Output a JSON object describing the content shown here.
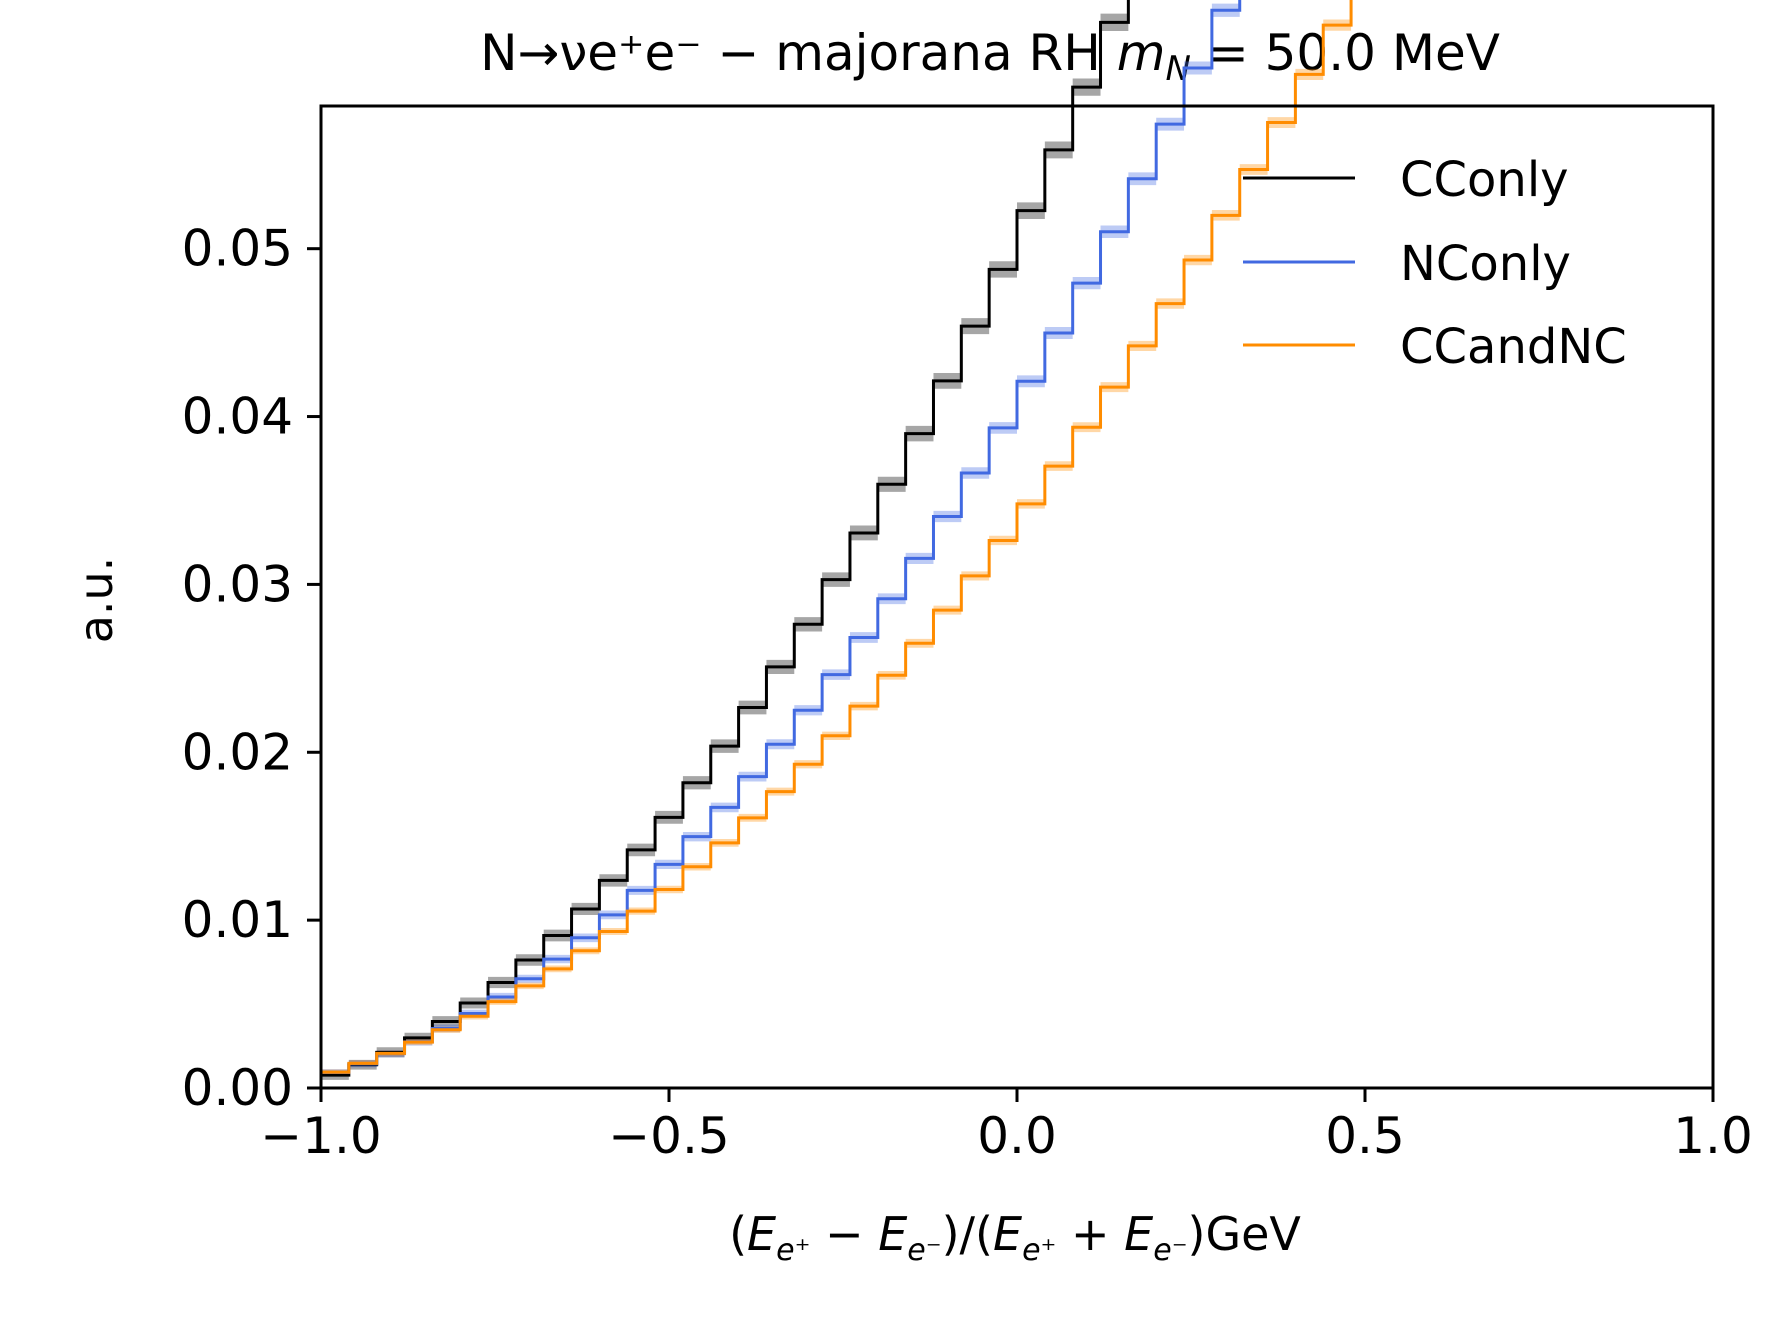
{
  "chart_data": {
    "type": "line",
    "title": {
      "base": "N→νe⁺e⁻ − majorana RH ",
      "mass_symbol": "m",
      "mass_sub": "N",
      "mass_value": " = 50.0 MeV"
    },
    "ylabel": "a.u.",
    "xlabel": {
      "open": "(",
      "E": "E",
      "sub_pos": "e⁺",
      "sub_neg": "e⁻",
      "minus": " − ",
      "plus": " + ",
      "mid": ")/(",
      "close": ")",
      "unit": "GeV"
    },
    "xlim": [
      -1.0,
      1.0
    ],
    "ylim": [
      0.0,
      0.0585
    ],
    "xticks": [
      -1.0,
      -0.5,
      0.0,
      0.5,
      1.0
    ],
    "xtick_labels": [
      "−1.0",
      "−0.5",
      "0.0",
      "0.5",
      "1.0"
    ],
    "yticks": [
      0.0,
      0.01,
      0.02,
      0.03,
      0.04,
      0.05
    ],
    "ytick_labels": [
      "0.00",
      "0.01",
      "0.02",
      "0.03",
      "0.04",
      "0.05"
    ],
    "bins": 50,
    "legend_position": "top-right",
    "grid": false,
    "series": [
      {
        "name": "CConly",
        "color": "#000000",
        "shape": "quadratic",
        "a": 0.0005,
        "b": 0.0125,
        "c": 0.0375,
        "uncertainty": 0.0007
      },
      {
        "name": "NConly",
        "color": "#4169e1",
        "shape": "quadratic",
        "a": 0.0007,
        "b": 0.0105,
        "c": 0.0295,
        "uncertainty": 0.0005
      },
      {
        "name": "CCandNC",
        "color": "#ff8c00",
        "shape": "quadratic",
        "a": 0.0007,
        "b": 0.0115,
        "c": 0.0215,
        "uncertainty": 0.0004
      }
    ]
  }
}
